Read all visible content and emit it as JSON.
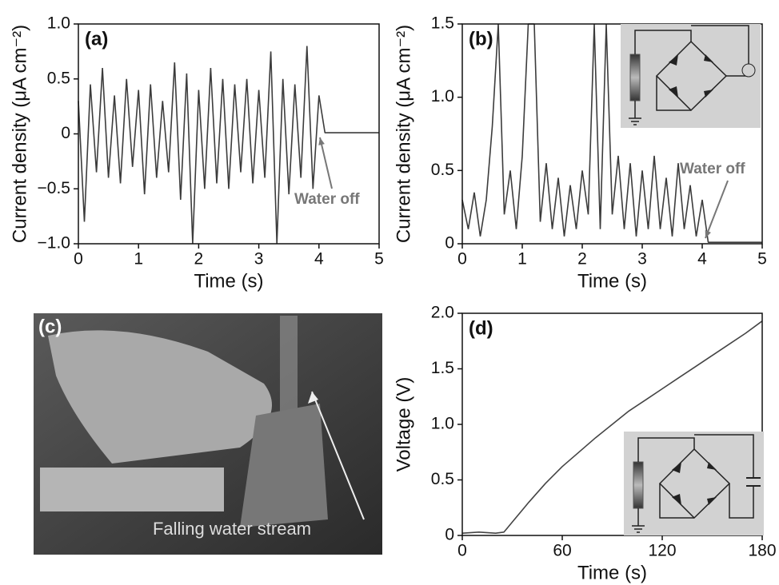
{
  "chart_data": [
    {
      "type": "line",
      "label": "(a)",
      "xlabel": "Time (s)",
      "ylabel": "Current density (μA cm⁻²)",
      "xlim": [
        0,
        5
      ],
      "ylim": [
        -1,
        1
      ],
      "xticks": [
        0,
        1,
        2,
        3,
        4,
        5
      ],
      "yticks": [
        {
          "value": -1,
          "label": "−1.0"
        },
        {
          "value": -0.5,
          "label": "−0.5"
        },
        0,
        0.5,
        {
          "value": 1,
          "label": "1.0"
        }
      ],
      "annotation": "Water off",
      "color": "#3c3c3c",
      "x": [
        0,
        0.1,
        0.2,
        0.3,
        0.4,
        0.5,
        0.6,
        0.7,
        0.8,
        0.9,
        1,
        1.1,
        1.2,
        1.3,
        1.4,
        1.5,
        1.6,
        1.7,
        1.8,
        1.9,
        2,
        2.1,
        2.2,
        2.3,
        2.4,
        2.5,
        2.6,
        2.7,
        2.8,
        2.9,
        3,
        3.1,
        3.2,
        3.3,
        3.4,
        3.5,
        3.6,
        3.7,
        3.8,
        3.9,
        4,
        4.1,
        4.2,
        4.3,
        4.4,
        4.5,
        4.6,
        4.7,
        4.8,
        4.9,
        5
      ],
      "values": [
        0.3,
        -0.8,
        0.45,
        -0.35,
        0.6,
        -0.4,
        0.35,
        -0.45,
        0.5,
        -0.3,
        0.4,
        -0.55,
        0.45,
        -0.4,
        0.3,
        -0.35,
        0.65,
        -0.6,
        0.55,
        -1.0,
        0.4,
        -0.5,
        0.6,
        -0.45,
        0.5,
        -0.5,
        0.45,
        -0.35,
        0.5,
        -0.45,
        0.4,
        -0.4,
        0.75,
        -1.0,
        0.5,
        -0.55,
        0.45,
        -0.4,
        0.8,
        -0.5,
        0.35,
        0.01,
        0.01,
        0.01,
        0.01,
        0.01,
        0.01,
        0.01,
        0.01,
        0.01,
        0.01
      ]
    },
    {
      "type": "line",
      "label": "(b)",
      "xlabel": "Time (s)",
      "ylabel": "Current density (μA cm⁻²)",
      "xlim": [
        0,
        5
      ],
      "ylim": [
        0,
        1.5
      ],
      "xticks": [
        0,
        1,
        2,
        3,
        4,
        5
      ],
      "yticks": [
        0,
        0.5,
        {
          "value": 1,
          "label": "1.0"
        },
        1.5
      ],
      "annotation": "Water off",
      "color": "#3c3c3c",
      "x": [
        0,
        0.1,
        0.2,
        0.3,
        0.4,
        0.5,
        0.6,
        0.7,
        0.8,
        0.9,
        1,
        1.1,
        1.2,
        1.3,
        1.4,
        1.5,
        1.6,
        1.7,
        1.8,
        1.9,
        2,
        2.1,
        2.2,
        2.3,
        2.4,
        2.5,
        2.6,
        2.7,
        2.8,
        2.9,
        3,
        3.1,
        3.2,
        3.3,
        3.4,
        3.5,
        3.6,
        3.7,
        3.8,
        3.9,
        4,
        4.1,
        4.2,
        4.3,
        4.4,
        4.5,
        4.6,
        4.7,
        4.8,
        4.9,
        5
      ],
      "values": [
        0.3,
        0.1,
        0.35,
        0.05,
        0.3,
        0.8,
        1.5,
        0.2,
        0.5,
        0.1,
        0.6,
        1.5,
        1.5,
        0.15,
        0.55,
        0.1,
        0.45,
        0.05,
        0.4,
        0.1,
        0.5,
        0.2,
        1.5,
        0.1,
        1.5,
        0.2,
        0.6,
        0.1,
        0.55,
        0.05,
        0.5,
        0.1,
        0.6,
        0.1,
        0.45,
        0.05,
        0.55,
        0.1,
        0.4,
        0.05,
        0.3,
        0.01,
        0.01,
        0.01,
        0.01,
        0.01,
        0.01,
        0.01,
        0.01,
        0.01,
        0.01
      ]
    },
    {
      "type": "line",
      "label": "(d)",
      "xlabel": "Time (s)",
      "ylabel": "Voltage (V)",
      "xlim": [
        0,
        180
      ],
      "ylim": [
        0,
        2
      ],
      "xticks": [
        0,
        60,
        120,
        180
      ],
      "yticks": [
        0,
        0.5,
        {
          "value": 1,
          "label": "1.0"
        },
        1.5,
        {
          "value": 2,
          "label": "2.0"
        }
      ],
      "color": "#444444",
      "x": [
        0,
        10,
        20,
        25,
        30,
        40,
        50,
        60,
        70,
        80,
        90,
        100,
        110,
        120,
        130,
        140,
        150,
        160,
        170,
        180
      ],
      "values": [
        0.02,
        0.03,
        0.02,
        0.03,
        0.12,
        0.3,
        0.47,
        0.62,
        0.75,
        0.88,
        1.0,
        1.12,
        1.22,
        1.32,
        1.42,
        1.52,
        1.62,
        1.72,
        1.82,
        1.93
      ]
    }
  ],
  "photo": {
    "label": "(c)",
    "caption": "Falling water stream"
  }
}
